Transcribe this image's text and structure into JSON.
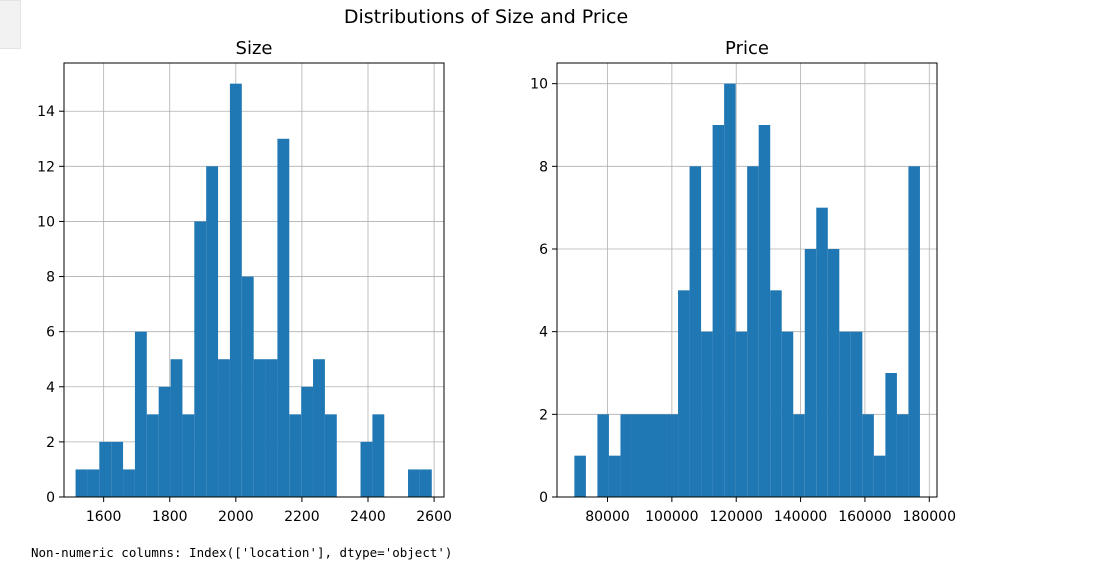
{
  "figure": {
    "suptitle": "Distributions of Size and Price"
  },
  "chart_data": [
    {
      "type": "bar",
      "subtype": "histogram",
      "title": "Size",
      "xlabel": "",
      "ylabel": "",
      "bins": 30,
      "bin_range": [
        1515,
        2593
      ],
      "xlim": [
        1480,
        2630
      ],
      "ylim": [
        0,
        15.75
      ],
      "xticks": [
        1600,
        1800,
        2000,
        2200,
        2400,
        2600
      ],
      "yticks": [
        0,
        2,
        4,
        6,
        8,
        10,
        12,
        14
      ],
      "counts": [
        1,
        1,
        2,
        2,
        1,
        6,
        3,
        4,
        5,
        3,
        10,
        12,
        5,
        15,
        8,
        5,
        5,
        13,
        3,
        4,
        5,
        3,
        0,
        0,
        2,
        3,
        0,
        0,
        1,
        1
      ],
      "grid": true,
      "color": "#1f77b4"
    },
    {
      "type": "bar",
      "subtype": "histogram",
      "title": "Price",
      "xlabel": "",
      "ylabel": "",
      "bins": 30,
      "bin_range": [
        69700,
        177100
      ],
      "xlim": [
        64300,
        182400
      ],
      "ylim": [
        0,
        10.5
      ],
      "xticks": [
        80000,
        100000,
        120000,
        140000,
        160000,
        180000
      ],
      "yticks": [
        0,
        2,
        4,
        6,
        8,
        10
      ],
      "counts": [
        1,
        0,
        2,
        1,
        2,
        2,
        2,
        2,
        2,
        5,
        8,
        4,
        9,
        10,
        4,
        8,
        9,
        5,
        4,
        2,
        6,
        7,
        6,
        4,
        4,
        2,
        1,
        3,
        2,
        8
      ],
      "grid": true,
      "color": "#1f77b4"
    }
  ],
  "output": {
    "text": "Non-numeric columns: Index(['location'], dtype='object')"
  }
}
